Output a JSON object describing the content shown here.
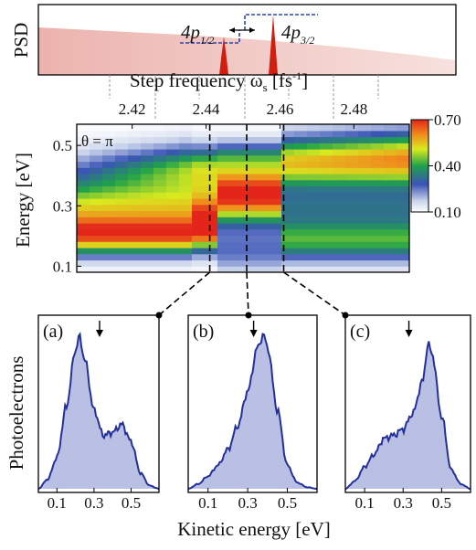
{
  "figure": {
    "psd_label": "PSD",
    "step_freq_label": "Step frequency ω",
    "step_freq_sub": "s",
    "step_freq_unit_open": " [fs",
    "step_freq_unit_sup": "-1",
    "step_freq_unit_close": "]",
    "level_1": "4p",
    "level_1_sub": "1/2",
    "level_2": "4p",
    "level_2_sub": "3/2",
    "theta_label": "θ = π",
    "energy_axis_label": "Energy [eV]",
    "photoelectrons_label": "Photoelectrons",
    "kinetic_axis_label": "Kinetic energy [eV]",
    "colors": {
      "psd_fill": "#f2c9c4",
      "peak": "#d01e10",
      "dash_blue": "#2f43a8",
      "spectrum_line": "#23309a",
      "spectrum_fill": "#b9c0e3"
    }
  },
  "chart_data": [
    {
      "type": "area",
      "panel": "PSD",
      "description_of_levels": "two narrow peaks labelled 4p1/2 and 4p3/2 on a decaying background",
      "x": [
        2.4,
        2.42,
        2.44,
        2.46,
        2.48,
        2.5
      ],
      "peaks_x": [
        2.445,
        2.455
      ],
      "peak_labels": [
        "4p1/2",
        "4p3/2"
      ]
    },
    {
      "type": "heatmap",
      "xlabel": "Step frequency ωs [fs-1]",
      "ylabel": "Energy [eV]",
      "xticks": [
        "2.42",
        "2.44",
        "2.46",
        "2.48"
      ],
      "yticks": [
        "0.1",
        "0.3",
        "0.5"
      ],
      "xlim": [
        2.405,
        2.495
      ],
      "ylim": [
        0.08,
        0.57
      ],
      "annotation": "θ = π",
      "colorbar": {
        "ticks": [
          "0.70",
          "0.40",
          "0.10"
        ],
        "range": [
          0.1,
          0.7
        ]
      },
      "cut_positions": [
        2.441,
        2.451,
        2.461
      ]
    },
    {
      "type": "area",
      "panel": "(a)",
      "xlabel": "Kinetic energy [eV]",
      "xticks": [
        "0.1",
        "0.3",
        "0.5"
      ],
      "arrow_x": 0.33,
      "x": [
        0.0,
        0.05,
        0.1,
        0.15,
        0.2,
        0.22,
        0.25,
        0.3,
        0.35,
        0.4,
        0.45,
        0.5,
        0.55,
        0.6,
        0.65
      ],
      "y": [
        0.0,
        0.06,
        0.2,
        0.52,
        0.88,
        0.97,
        0.82,
        0.5,
        0.34,
        0.36,
        0.41,
        0.3,
        0.1,
        0.02,
        0.0
      ]
    },
    {
      "type": "area",
      "panel": "(b)",
      "xlabel": "Kinetic energy [eV]",
      "xticks": [
        "0.1",
        "0.3",
        "0.5"
      ],
      "arrow_x": 0.33,
      "x": [
        0.0,
        0.05,
        0.1,
        0.15,
        0.2,
        0.25,
        0.3,
        0.35,
        0.38,
        0.4,
        0.45,
        0.5,
        0.55,
        0.6,
        0.65
      ],
      "y": [
        0.0,
        0.03,
        0.08,
        0.15,
        0.25,
        0.4,
        0.62,
        0.9,
        0.98,
        0.9,
        0.5,
        0.15,
        0.04,
        0.01,
        0.0
      ]
    },
    {
      "type": "area",
      "panel": "(c)",
      "xlabel": "Kinetic energy [eV]",
      "xticks": [
        "0.1",
        "0.3",
        "0.5"
      ],
      "arrow_x": 0.33,
      "x": [
        0.0,
        0.05,
        0.1,
        0.15,
        0.2,
        0.25,
        0.3,
        0.35,
        0.4,
        0.43,
        0.45,
        0.5,
        0.55,
        0.6,
        0.65
      ],
      "y": [
        0.0,
        0.05,
        0.14,
        0.22,
        0.32,
        0.34,
        0.38,
        0.48,
        0.68,
        0.92,
        0.86,
        0.46,
        0.12,
        0.03,
        0.0
      ]
    }
  ],
  "panels": [
    {
      "letter": "(a)"
    },
    {
      "letter": "(b)"
    },
    {
      "letter": "(c)"
    }
  ]
}
